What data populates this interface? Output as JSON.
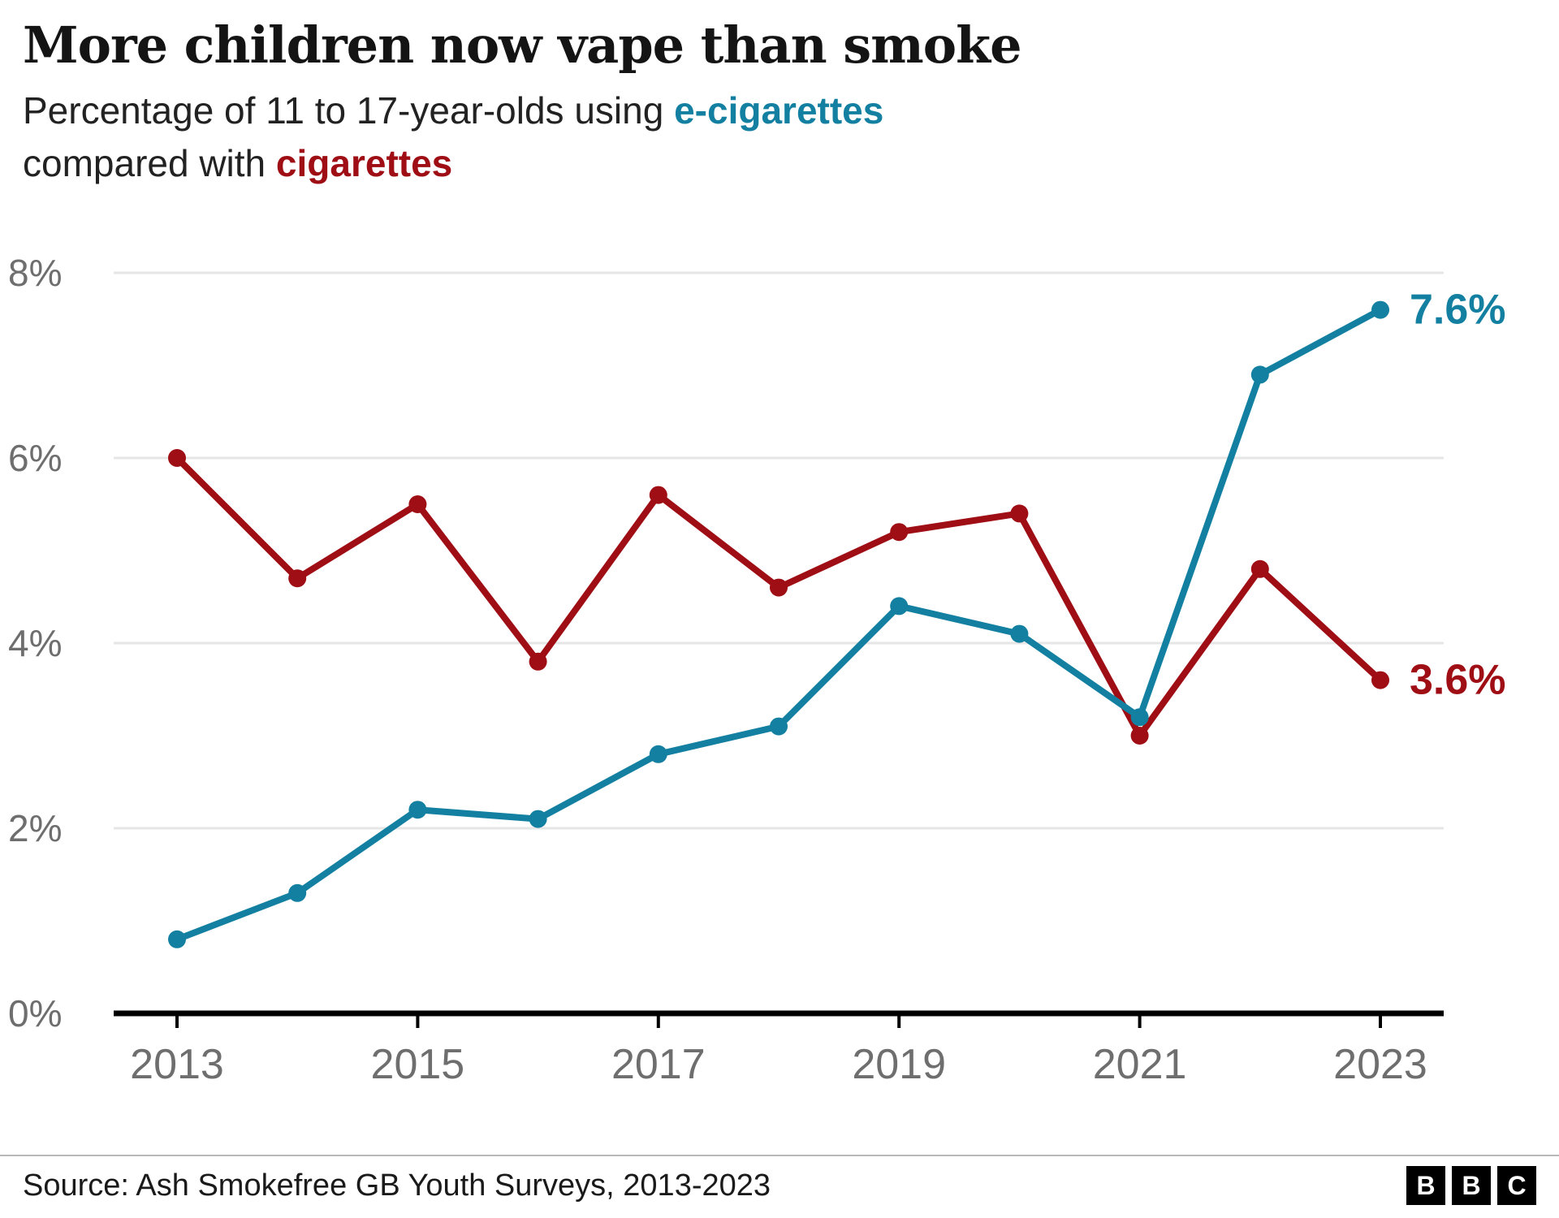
{
  "header": {
    "title": "More children now vape than smoke",
    "subtitle": {
      "line1_prefix": "Percentage of 11 to 17-year-olds using ",
      "series1_label": "e-cigarettes",
      "line2_prefix": "compared with ",
      "series2_label": "cigarettes"
    }
  },
  "chart_data": {
    "type": "line",
    "x": [
      2013,
      2014,
      2015,
      2016,
      2017,
      2018,
      2019,
      2020,
      2021,
      2022,
      2023
    ],
    "series": [
      {
        "name": "cigarettes",
        "color": "#9E0E14",
        "values": [
          6.0,
          4.7,
          5.5,
          3.8,
          5.6,
          4.6,
          5.2,
          5.4,
          3.0,
          4.8,
          3.6
        ],
        "end_label": "3.6%"
      },
      {
        "name": "e-cigarettes",
        "color": "#1380A1",
        "values": [
          0.8,
          1.3,
          2.2,
          2.1,
          2.8,
          3.1,
          4.4,
          4.1,
          3.2,
          6.9,
          7.6
        ],
        "end_label": "7.6%"
      }
    ],
    "ylim": [
      0,
      8
    ],
    "yticks": [
      0,
      2,
      4,
      6,
      8
    ],
    "ytick_labels": [
      "0%",
      "2%",
      "4%",
      "6%",
      "8%"
    ],
    "xticks": [
      2013,
      2015,
      2017,
      2019,
      2021,
      2023
    ],
    "grid": true,
    "legend_position": "inline-subtitle",
    "title": "More children now vape than smoke",
    "xlabel": "",
    "ylabel": ""
  },
  "footer": {
    "source": "Source: Ash Smokefree GB Youth Surveys, 2013-2023",
    "logo_letters": [
      "B",
      "B",
      "C"
    ]
  },
  "colors": {
    "ecig_accent": "#1380A1",
    "cig_accent": "#9E0E14",
    "gridline": "#e6e6e6",
    "axis": "#000000",
    "tick_label": "#6e6e6e"
  }
}
